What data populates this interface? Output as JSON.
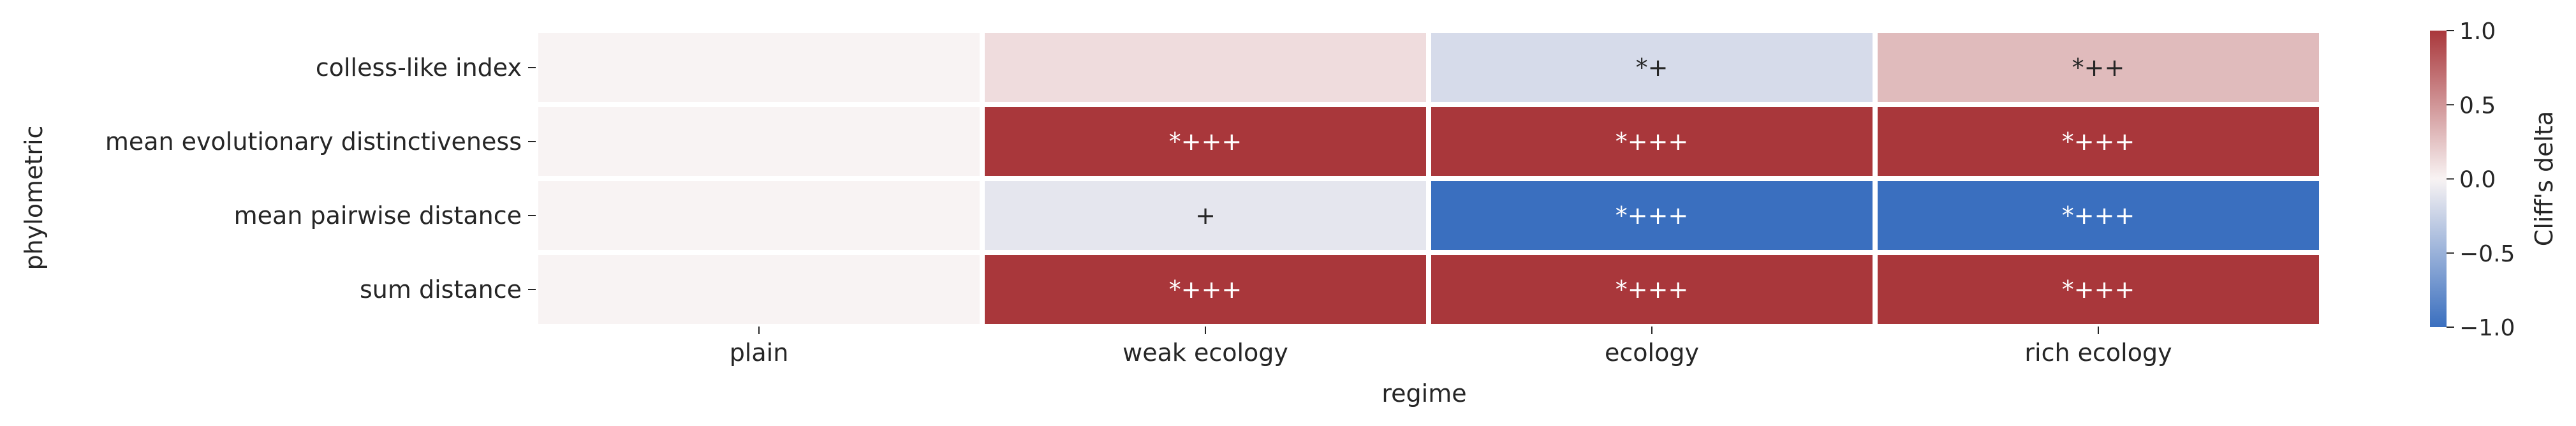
{
  "chart_data": {
    "type": "heatmap",
    "title": "",
    "xlabel": "regime",
    "ylabel": "phylometric",
    "x_categories": [
      "plain",
      "weak ecology",
      "ecology",
      "rich ecology"
    ],
    "y_categories": [
      "colless-like index",
      "mean evolutionary distinctiveness",
      "mean pairwise distance",
      "sum distance"
    ],
    "values": [
      [
        0.0,
        0.12,
        -0.18,
        0.3
      ],
      [
        0.0,
        1.0,
        1.0,
        1.0
      ],
      [
        0.0,
        -0.1,
        -1.0,
        -1.0
      ],
      [
        0.0,
        1.0,
        1.0,
        1.0
      ]
    ],
    "annotations": [
      [
        "",
        "",
        "*+",
        "*++"
      ],
      [
        "",
        "*+++",
        "*+++",
        "*+++"
      ],
      [
        "",
        "+",
        "*+++",
        "*+++"
      ],
      [
        "",
        "*+++",
        "*+++",
        "*+++"
      ]
    ],
    "colorbar": {
      "label": "Cliff's delta",
      "range": [
        -1.0,
        1.0
      ],
      "ticks": [
        -1.0,
        -0.5,
        0.0,
        0.5,
        1.0
      ],
      "tick_labels": [
        "−1.0",
        "−0.5",
        "0.0",
        "0.5",
        "1.0"
      ],
      "colormap": "vlag",
      "stops": [
        "#3a6fbf",
        "#f8f3f3",
        "#a9373b"
      ]
    },
    "grid": false
  }
}
